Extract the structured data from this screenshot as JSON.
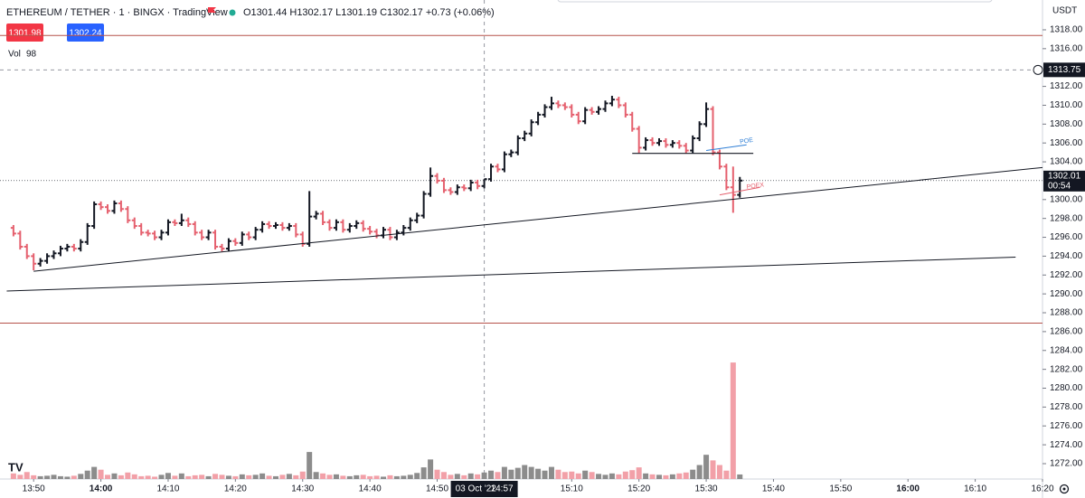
{
  "chart_data": {
    "type": "ohlc",
    "title": "ETHEREUM / TETHER · 1 · BINGX · TradingView",
    "ohlc_text": "O1301.44 H1302.17 L1301.19 C1302.17 +0.73 (+0.06%)",
    "bid": 1301.98,
    "ask": 1302.24,
    "volume_label": "Vol",
    "volume_current": 98,
    "currency": "USDT",
    "up_color": "#131722",
    "down_color": "#e5606e",
    "volume_up_color": "#8c8c8c",
    "volume_down_color": "#f2a0a8",
    "x": [
      "13:47",
      "13:48",
      "13:49",
      "13:50",
      "13:51",
      "13:52",
      "13:53",
      "13:54",
      "13:55",
      "13:56",
      "13:57",
      "13:58",
      "13:59",
      "14:00",
      "14:01",
      "14:02",
      "14:03",
      "14:04",
      "14:05",
      "14:06",
      "14:07",
      "14:08",
      "14:09",
      "14:10",
      "14:11",
      "14:12",
      "14:13",
      "14:14",
      "14:15",
      "14:16",
      "14:17",
      "14:18",
      "14:19",
      "14:20",
      "14:21",
      "14:22",
      "14:23",
      "14:24",
      "14:25",
      "14:26",
      "14:27",
      "14:28",
      "14:29",
      "14:30",
      "14:31",
      "14:32",
      "14:33",
      "14:34",
      "14:35",
      "14:36",
      "14:37",
      "14:38",
      "14:39",
      "14:40",
      "14:41",
      "14:42",
      "14:43",
      "14:44",
      "14:45",
      "14:46",
      "14:47",
      "14:48",
      "14:49",
      "14:50",
      "14:51",
      "14:52",
      "14:53",
      "14:54",
      "14:55",
      "14:56",
      "14:57",
      "14:58",
      "14:59",
      "15:00",
      "15:01",
      "15:02",
      "15:03",
      "15:04",
      "15:05",
      "15:06",
      "15:07",
      "15:08",
      "15:09",
      "15:10",
      "15:11",
      "15:12",
      "15:13",
      "15:14",
      "15:15",
      "15:16",
      "15:17",
      "15:18",
      "15:19",
      "15:20",
      "15:21",
      "15:22",
      "15:23",
      "15:24",
      "15:25",
      "15:26",
      "15:27",
      "15:28",
      "15:29",
      "15:30",
      "15:31",
      "15:32",
      "15:33",
      "15:34",
      "15:35"
    ],
    "open": [
      1297.0,
      1296.4,
      1295.0,
      1294.0,
      1293.2,
      1293.5,
      1294.0,
      1294.3,
      1294.8,
      1295.0,
      1294.8,
      1295.5,
      1297.2,
      1299.5,
      1299.2,
      1298.8,
      1299.6,
      1299.0,
      1297.8,
      1297.2,
      1296.5,
      1296.4,
      1296.0,
      1296.5,
      1297.6,
      1297.5,
      1297.8,
      1297.4,
      1296.5,
      1296.0,
      1296.5,
      1295.0,
      1294.8,
      1295.6,
      1295.4,
      1296.3,
      1296.0,
      1296.8,
      1297.4,
      1297.2,
      1297.3,
      1297.0,
      1297.2,
      1296.3,
      1295.3,
      1298.2,
      1298.5,
      1297.6,
      1297.0,
      1297.6,
      1296.8,
      1297.2,
      1297.5,
      1296.9,
      1296.6,
      1296.2,
      1296.8,
      1296.0,
      1296.5,
      1297.0,
      1297.8,
      1298.3,
      1300.6,
      1302.5,
      1302.0,
      1301.0,
      1300.8,
      1301.3,
      1301.2,
      1301.8,
      1301.44,
      1302.17,
      1303.5,
      1303.2,
      1304.8,
      1305.0,
      1306.5,
      1307.0,
      1308.2,
      1309.0,
      1309.8,
      1310.2,
      1310.0,
      1309.8,
      1309.0,
      1308.3,
      1309.5,
      1309.3,
      1309.6,
      1310.2,
      1310.6,
      1310.0,
      1309.0,
      1307.5,
      1305.5,
      1306.3,
      1306.0,
      1306.2,
      1305.8,
      1306.0,
      1305.7,
      1305.2,
      1306.5,
      1308.0,
      1309.6,
      1305.0,
      1303.5,
      1301.3,
      1300.5
    ],
    "high": [
      1297.3,
      1296.7,
      1295.3,
      1294.3,
      1293.8,
      1294.3,
      1294.6,
      1295.1,
      1295.3,
      1295.3,
      1295.8,
      1297.5,
      1299.8,
      1299.8,
      1299.5,
      1299.9,
      1299.9,
      1299.3,
      1298.1,
      1297.5,
      1296.8,
      1296.7,
      1296.8,
      1297.9,
      1297.9,
      1298.5,
      1298.1,
      1297.7,
      1296.8,
      1296.8,
      1296.8,
      1295.3,
      1295.9,
      1295.9,
      1296.6,
      1296.6,
      1297.1,
      1297.7,
      1297.7,
      1297.6,
      1297.6,
      1297.5,
      1297.5,
      1296.6,
      1300.9,
      1298.8,
      1298.8,
      1297.9,
      1297.9,
      1297.9,
      1297.5,
      1297.8,
      1297.8,
      1297.2,
      1296.9,
      1297.1,
      1297.1,
      1296.8,
      1297.3,
      1298.1,
      1298.6,
      1300.9,
      1303.4,
      1302.8,
      1302.3,
      1301.3,
      1301.6,
      1301.6,
      1302.1,
      1302.1,
      1302.17,
      1303.8,
      1303.8,
      1305.1,
      1305.3,
      1306.8,
      1307.3,
      1308.5,
      1309.3,
      1310.1,
      1310.9,
      1310.5,
      1310.3,
      1310.1,
      1309.3,
      1309.8,
      1309.8,
      1309.9,
      1310.5,
      1311.0,
      1310.9,
      1310.3,
      1309.3,
      1307.8,
      1306.6,
      1306.6,
      1306.5,
      1306.5,
      1306.3,
      1306.3,
      1306.0,
      1306.8,
      1308.3,
      1310.3,
      1309.9,
      1305.3,
      1303.8,
      1303.5,
      1302.4
    ],
    "low": [
      1296.1,
      1294.7,
      1293.7,
      1292.5,
      1292.9,
      1293.2,
      1293.7,
      1294.0,
      1294.5,
      1294.5,
      1294.5,
      1295.2,
      1296.9,
      1298.9,
      1298.5,
      1298.5,
      1298.7,
      1297.5,
      1296.9,
      1296.2,
      1296.1,
      1295.7,
      1295.7,
      1296.2,
      1297.2,
      1297.2,
      1297.1,
      1296.2,
      1295.7,
      1295.7,
      1294.7,
      1294.5,
      1294.5,
      1295.1,
      1295.1,
      1295.7,
      1295.7,
      1296.5,
      1296.9,
      1296.9,
      1296.7,
      1296.7,
      1296.0,
      1295.0,
      1295.0,
      1297.9,
      1297.3,
      1296.7,
      1296.7,
      1296.5,
      1296.5,
      1296.9,
      1296.6,
      1296.3,
      1295.9,
      1295.9,
      1295.7,
      1295.7,
      1296.2,
      1296.7,
      1297.5,
      1298.0,
      1300.3,
      1301.7,
      1300.7,
      1300.5,
      1300.5,
      1300.9,
      1300.9,
      1301.1,
      1301.19,
      1301.9,
      1302.9,
      1302.9,
      1304.5,
      1304.7,
      1306.2,
      1306.7,
      1307.9,
      1308.7,
      1309.5,
      1309.7,
      1309.5,
      1308.7,
      1308.0,
      1308.0,
      1309.0,
      1309.0,
      1309.3,
      1309.9,
      1309.7,
      1308.7,
      1307.2,
      1304.9,
      1305.2,
      1305.7,
      1305.7,
      1305.5,
      1305.5,
      1305.4,
      1304.9,
      1304.9,
      1306.2,
      1307.7,
      1304.7,
      1303.2,
      1301.0,
      1298.6,
      1300.2
    ],
    "close": [
      1296.4,
      1295.0,
      1294.0,
      1293.2,
      1293.5,
      1294.0,
      1294.3,
      1294.8,
      1295.0,
      1294.8,
      1295.5,
      1297.2,
      1299.5,
      1299.2,
      1298.8,
      1299.6,
      1299.0,
      1297.8,
      1297.2,
      1296.5,
      1296.4,
      1296.0,
      1296.5,
      1297.6,
      1297.5,
      1297.8,
      1297.4,
      1296.5,
      1296.0,
      1296.5,
      1295.0,
      1294.8,
      1295.6,
      1295.4,
      1296.3,
      1296.0,
      1296.8,
      1297.4,
      1297.2,
      1297.3,
      1297.0,
      1297.2,
      1296.3,
      1295.3,
      1298.2,
      1298.5,
      1297.6,
      1297.0,
      1297.6,
      1296.8,
      1297.2,
      1297.5,
      1296.9,
      1296.6,
      1296.2,
      1296.8,
      1296.0,
      1296.5,
      1297.0,
      1297.8,
      1298.3,
      1300.6,
      1302.5,
      1302.0,
      1301.0,
      1300.8,
      1301.3,
      1301.2,
      1301.8,
      1301.44,
      1302.17,
      1303.5,
      1303.2,
      1304.8,
      1305.0,
      1306.5,
      1307.0,
      1308.2,
      1309.0,
      1309.8,
      1310.2,
      1310.0,
      1309.8,
      1309.0,
      1308.3,
      1309.5,
      1309.3,
      1309.6,
      1310.2,
      1310.6,
      1310.0,
      1309.0,
      1307.5,
      1305.5,
      1306.3,
      1306.0,
      1306.2,
      1305.8,
      1306.0,
      1305.7,
      1305.2,
      1306.5,
      1308.0,
      1309.6,
      1305.0,
      1303.5,
      1301.3,
      1300.5,
      1302.01
    ],
    "volume": [
      120,
      90,
      150,
      80,
      60,
      70,
      90,
      60,
      50,
      70,
      110,
      180,
      260,
      200,
      90,
      120,
      80,
      140,
      100,
      60,
      70,
      50,
      90,
      130,
      70,
      120,
      60,
      80,
      90,
      60,
      110,
      90,
      70,
      60,
      100,
      80,
      90,
      120,
      70,
      60,
      90,
      110,
      80,
      160,
      580,
      150,
      120,
      90,
      100,
      70,
      60,
      80,
      90,
      60,
      70,
      50,
      80,
      60,
      70,
      90,
      130,
      250,
      420,
      200,
      150,
      90,
      110,
      80,
      120,
      100,
      140,
      180,
      150,
      260,
      200,
      240,
      300,
      260,
      220,
      180,
      260,
      200,
      150,
      160,
      120,
      180,
      150,
      110,
      90,
      120,
      100,
      160,
      190,
      250,
      120,
      100,
      90,
      80,
      100,
      120,
      140,
      200,
      300,
      520,
      400,
      300,
      180,
      2500,
      98
    ],
    "xlim": [
      "13:45",
      "16:20"
    ],
    "ylim": [
      1270.37,
      1321.16
    ],
    "volume_ylim": [
      0,
      6400
    ],
    "yticks": [
      {
        "value": 1318,
        "label": "1318.00"
      },
      {
        "value": 1316,
        "label": "1316.00"
      },
      {
        "value": 1312,
        "label": "1312.00"
      },
      {
        "value": 1310,
        "label": "1310.00"
      },
      {
        "value": 1308,
        "label": "1308.00"
      },
      {
        "value": 1306,
        "label": "1306.00"
      },
      {
        "value": 1304,
        "label": "1304.00"
      },
      {
        "value": 1300,
        "label": "1300.00"
      },
      {
        "value": 1298,
        "label": "1298.00"
      },
      {
        "value": 1296,
        "label": "1296.00"
      },
      {
        "value": 1294,
        "label": "1294.00"
      },
      {
        "value": 1292,
        "label": "1292.00"
      },
      {
        "value": 1290,
        "label": "1290.00"
      },
      {
        "value": 1288,
        "label": "1288.00"
      },
      {
        "value": 1286,
        "label": "1286.00"
      },
      {
        "value": 1284,
        "label": "1284.00"
      },
      {
        "value": 1282,
        "label": "1282.00"
      },
      {
        "value": 1280,
        "label": "1280.00"
      },
      {
        "value": 1278,
        "label": "1278.00"
      },
      {
        "value": 1276,
        "label": "1276.00"
      },
      {
        "value": 1274,
        "label": "1274.00"
      },
      {
        "value": 1272,
        "label": "1272.00"
      }
    ],
    "xticks": [
      "13:50",
      "14:00",
      "14:10",
      "14:20",
      "14:30",
      "14:40",
      "14:50",
      "15:10",
      "15:20",
      "15:30",
      "15:40",
      "15:50",
      "16:00",
      "16:10",
      "16:20"
    ],
    "last_price": 1302.01,
    "countdown": "00:54",
    "crosshair": {
      "price": 1313.75,
      "date": "03 Oct '22",
      "time": "14:57"
    },
    "horizontal_lines": [
      1317.4,
      1286.9
    ],
    "trend_lines": [
      {
        "start": [
          "13:50",
          1292.4
        ],
        "end": [
          "16:20",
          1303.4
        ]
      },
      {
        "start": [
          "13:46",
          1290.3
        ],
        "end": [
          "16:16",
          1293.9
        ]
      }
    ],
    "poe_line": {
      "start": [
        "15:19",
        1304.9
      ],
      "end": [
        "15:37",
        1304.9
      ]
    },
    "annotations": [
      {
        "text": "POE",
        "color": "#2f7fd6",
        "start": [
          "15:30",
          1305.2
        ],
        "end": [
          "15:36",
          1305.8
        ],
        "at": [
          "15:35",
          1306.1
        ]
      },
      {
        "text": "POEX",
        "color": "#e5606e",
        "start": [
          "15:32",
          1300.5
        ],
        "end": [
          "15:38",
          1301.3
        ],
        "at": [
          "15:36",
          1301.3
        ]
      }
    ]
  }
}
